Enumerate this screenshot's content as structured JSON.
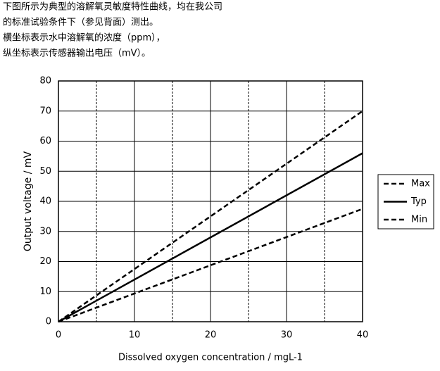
{
  "intro": [
    "下图所示为典型的溶解氧灵敏度特性曲线，均在我公司",
    "的标准试验条件下（参见背面）测出。",
    "横坐标表示水中溶解氧的浓度（ppm），",
    "纵坐标表示传感器输出电压（mV）。"
  ],
  "chart_data": {
    "type": "line",
    "x_label": "Dissolved oxygen concentration / mgL-1",
    "y_label": "Output voltage / mV",
    "x": [
      0,
      40
    ],
    "series": [
      {
        "name": "Max",
        "color": "#000000",
        "dashed": true,
        "values": [
          0,
          70
        ]
      },
      {
        "name": "Typ",
        "color": "#000000",
        "dashed": false,
        "values": [
          0,
          56
        ]
      },
      {
        "name": "Min",
        "color": "#000000",
        "dashed": true,
        "values": [
          0,
          37.5
        ]
      }
    ],
    "xlim": [
      0,
      40
    ],
    "xticks": [
      0,
      10,
      20,
      30,
      40
    ],
    "xminorticks": [
      5,
      15,
      25,
      35
    ],
    "ylim": [
      0,
      80
    ],
    "yticks": [
      0,
      10,
      20,
      30,
      40,
      50,
      60,
      70,
      80
    ],
    "grid": true,
    "legend": "right"
  }
}
